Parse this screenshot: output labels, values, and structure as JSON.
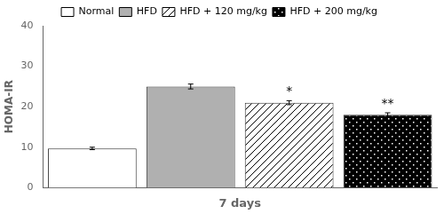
{
  "chart_data": {
    "type": "bar",
    "categories": [
      "Normal",
      "HFD",
      "HFD + 120 mg/kg",
      "HFD + 200 mg/kg"
    ],
    "values": [
      9.7,
      25.0,
      21.0,
      18.0
    ],
    "errors": [
      0.3,
      0.6,
      0.5,
      0.5
    ],
    "colors": [
      "white",
      "#b0b0b0",
      "white",
      "black"
    ],
    "ylabel": "HOMA-IR",
    "xlabel": "7 days",
    "ylim": [
      0,
      40
    ],
    "yticks": [
      0,
      10,
      20,
      30,
      40
    ],
    "significance": [
      null,
      null,
      "*",
      "**"
    ],
    "legend": "top",
    "grid": false,
    "tick_labels": "y"
  }
}
